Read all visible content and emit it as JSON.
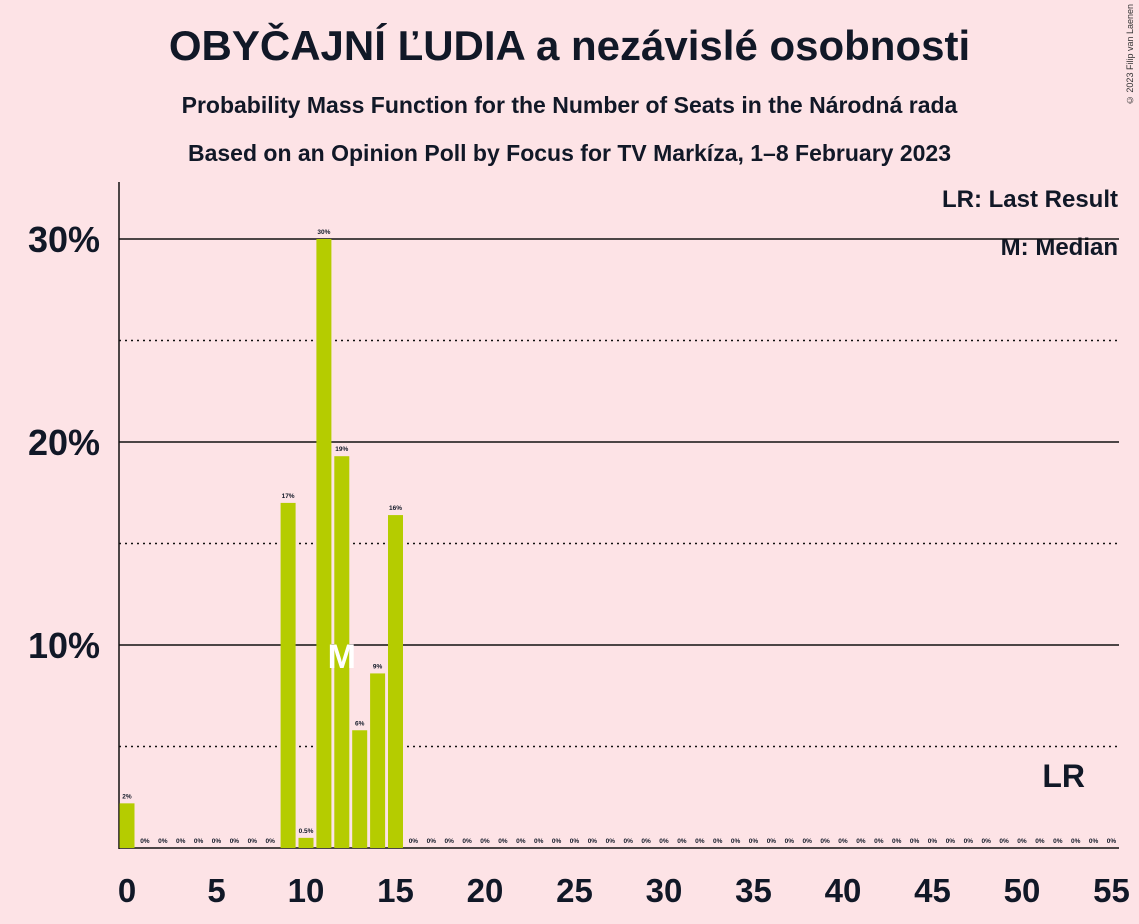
{
  "title": "OBYČAJNÍ ĽUDIA a nezávislé osobnosti",
  "subtitle": "Probability Mass Function for the Number of Seats in the Národná rada",
  "subtitle2": "Based on an Opinion Poll by Focus for TV Markíza, 1–8 February 2023",
  "copyright": "© 2023 Filip van Laenen",
  "legend": {
    "last_result": "LR: Last Result",
    "median": "M: Median"
  },
  "colors": {
    "bar": "#b5cc00",
    "background": "#fde3e6",
    "text": "#111827"
  },
  "chart_data": {
    "type": "bar",
    "xlabel": "",
    "ylabel": "",
    "xlim": [
      0,
      55
    ],
    "ylim": [
      0,
      30
    ],
    "x_ticks": [
      "0",
      "5",
      "10",
      "15",
      "20",
      "25",
      "30",
      "35",
      "40",
      "45",
      "50",
      "55"
    ],
    "y_ticks": [
      {
        "value": 10,
        "label": "10%"
      },
      {
        "value": 20,
        "label": "20%"
      },
      {
        "value": 30,
        "label": "30%"
      }
    ],
    "dotted_gridlines": [
      5,
      15,
      25
    ],
    "x": [
      0,
      1,
      2,
      3,
      4,
      5,
      6,
      7,
      8,
      9,
      10,
      11,
      12,
      13,
      14,
      15,
      16,
      17,
      18,
      19,
      20,
      21,
      22,
      23,
      24,
      25,
      26,
      27,
      28,
      29,
      30,
      31,
      32,
      33,
      34,
      35,
      36,
      37,
      38,
      39,
      40,
      41,
      42,
      43,
      44,
      45,
      46,
      47,
      48,
      49,
      50,
      51,
      52,
      53,
      54,
      55
    ],
    "values": [
      2.2,
      0,
      0,
      0,
      0,
      0,
      0,
      0,
      0,
      17,
      0.5,
      30,
      19.3,
      5.8,
      8.6,
      16.4,
      0,
      0,
      0,
      0,
      0,
      0,
      0,
      0,
      0,
      0,
      0,
      0,
      0,
      0,
      0,
      0,
      0,
      0,
      0,
      0,
      0,
      0,
      0,
      0,
      0,
      0,
      0,
      0,
      0,
      0,
      0,
      0,
      0,
      0,
      0,
      0,
      0,
      0,
      0,
      0
    ],
    "labels": [
      "2%",
      "0%",
      "0%",
      "0%",
      "0%",
      "0%",
      "0%",
      "0%",
      "0%",
      "17%",
      "0.5%",
      "30%",
      "19%",
      "6%",
      "9%",
      "16%",
      "0%",
      "0%",
      "0%",
      "0%",
      "0%",
      "0%",
      "0%",
      "0%",
      "0%",
      "0%",
      "0%",
      "0%",
      "0%",
      "0%",
      "0%",
      "0%",
      "0%",
      "0%",
      "0%",
      "0%",
      "0%",
      "0%",
      "0%",
      "0%",
      "0%",
      "0%",
      "0%",
      "0%",
      "0%",
      "0%",
      "0%",
      "0%",
      "0%",
      "0%",
      "0%",
      "0%",
      "0%",
      "0%",
      "0%",
      "0%"
    ],
    "median": 12,
    "median_label": "M",
    "last_result": 53,
    "last_result_label": "LR",
    "legend_position": "top-right"
  }
}
